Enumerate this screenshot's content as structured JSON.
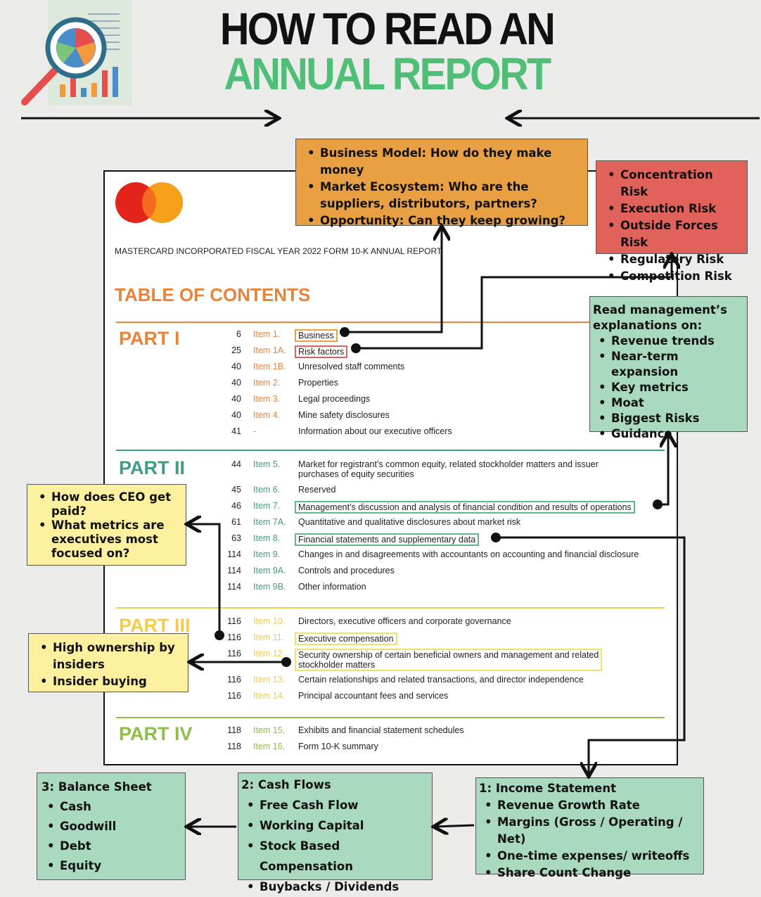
{
  "title": {
    "line1": "HOW TO READ AN",
    "line2": "ANNUAL REPORT"
  },
  "colors": {
    "green": "#4fbf78",
    "orange_box": "#e9a043",
    "red_box": "#e0625a",
    "green_box": "#a9d9be",
    "yellow_box": "#fdf19f",
    "part1": "#e8833a",
    "part2": "#3f9c86",
    "part3": "#f2cc4a",
    "part4": "#8cbf4a"
  },
  "icon": "magnifier-pie-chart-icon",
  "doc": {
    "logo": "mastercard-logo",
    "header": "MASTERCARD INCORPORATED FISCAL YEAR 2022 FORM 10-K ANNUAL REPORT",
    "toc_title": "TABLE OF CONTENTS",
    "parts": [
      {
        "label": "PART I",
        "rows": [
          [
            "6",
            "Item 1.",
            "Business"
          ],
          [
            "25",
            "Item 1A.",
            "Risk factors"
          ],
          [
            "40",
            "Item 1B.",
            "Unresolved staff comments"
          ],
          [
            "40",
            "Item 2.",
            "Properties"
          ],
          [
            "40",
            "Item 3.",
            "Legal proceedings"
          ],
          [
            "40",
            "Item 4.",
            "Mine safety disclosures"
          ],
          [
            "41",
            "-",
            "Information about our executive officers"
          ]
        ]
      },
      {
        "label": "PART II",
        "rows": [
          [
            "44",
            "Item 5.",
            "Market for registrant’s common equity, related stockholder matters and issuer",
            "purchases of equity securities"
          ],
          [
            "45",
            "Item 6.",
            "Reserved"
          ],
          [
            "46",
            "Item 7.",
            "Management’s discussion and analysis of financial condition and results of operations"
          ],
          [
            "61",
            "Item 7A.",
            "Quantitative and qualitative disclosures about market risk"
          ],
          [
            "63",
            "Item 8.",
            "Financial statements and supplementary data"
          ],
          [
            "114",
            "Item 9.",
            "Changes in and disagreements with accountants on accounting and financial disclosure"
          ],
          [
            "114",
            "Item 9A.",
            "Controls and procedures"
          ],
          [
            "114",
            "Item 9B.",
            "Other information"
          ]
        ]
      },
      {
        "label": "PART III",
        "rows": [
          [
            "116",
            "Item 10.",
            "Directors, executive officers and corporate governance"
          ],
          [
            "116",
            "Item 11.",
            "Executive compensation"
          ],
          [
            "116",
            "Item 12.",
            "Security ownership of certain beneficial owners and management and related",
            "stockholder matters"
          ],
          [
            "116",
            "Item 13.",
            "Certain relationships and related transactions, and director independence"
          ],
          [
            "116",
            "Item 14.",
            "Principal accountant fees and services"
          ]
        ]
      },
      {
        "label": "PART IV",
        "rows": [
          [
            "118",
            "Item 15.",
            "Exhibits and financial statement schedules"
          ],
          [
            "118",
            "Item 16.",
            "Form 10-K summary"
          ]
        ]
      }
    ]
  },
  "boxes": {
    "business": [
      "Business Model: How do they make money",
      "Market Ecosystem: Who are the suppliers, distributors, partners?",
      "Opportunity: Can they keep growing?"
    ],
    "risks": [
      "Concentration Risk",
      "Execution Risk",
      "Outside Forces Risk",
      "Regulatory Risk",
      "Competition Risk"
    ],
    "management": {
      "heading": "Read management’s explanations on:",
      "items": [
        "Revenue trends",
        "Near-term expansion",
        "Key metrics",
        "Moat",
        "Biggest Risks",
        "Guidance"
      ]
    },
    "ceo": [
      "How does CEO get paid?",
      "What metrics are executives most focused on?"
    ],
    "ownership": [
      "High ownership by insiders",
      "Insider buying"
    ],
    "balance": {
      "heading": "3: Balance Sheet",
      "items": [
        "Cash",
        "Goodwill",
        "Debt",
        "Equity"
      ]
    },
    "cash": {
      "heading": "2: Cash Flows",
      "items": [
        "Free Cash Flow",
        "Working Capital",
        "Stock Based Compensation",
        "Buybacks / Dividends"
      ]
    },
    "income": {
      "heading": "1: Income Statement",
      "items": [
        "Revenue Growth Rate",
        "Margins (Gross / Operating / Net)",
        "One-time expenses/ writeoffs",
        "Share Count Change"
      ]
    }
  }
}
